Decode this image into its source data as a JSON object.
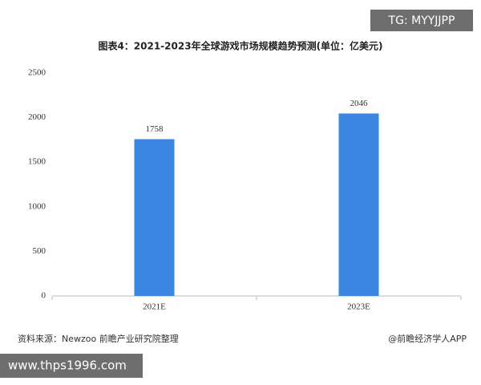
{
  "chart_data": {
    "type": "bar",
    "title": "图表4：2021-2023年全球游戏市场规模趋势预测(单位：亿美元)",
    "categories": [
      "2021E",
      "2023E"
    ],
    "values": [
      1758,
      2046
    ],
    "color": "#3a86e0",
    "ylim": [
      0,
      2500
    ],
    "yticks": [
      0,
      500,
      1000,
      1500,
      2000,
      2500
    ],
    "grid": false
  },
  "source": "资料来源：Newzoo 前瞻产业研究院整理",
  "credit": "@前瞻经济学人APP",
  "overlay_top": "TG: MYYJJPP",
  "overlay_bottom": "www.thps1996.com"
}
